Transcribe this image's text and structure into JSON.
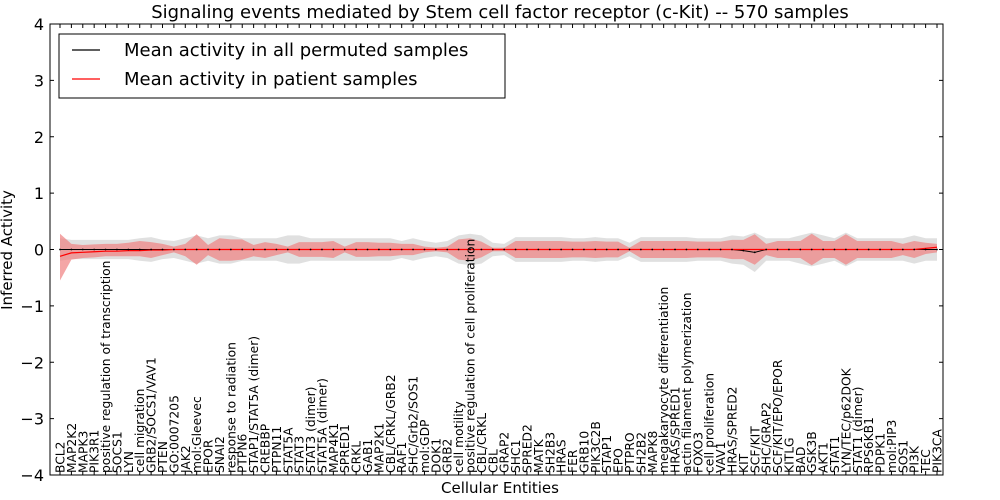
{
  "chart_data": {
    "type": "line",
    "title": "Signaling events mediated by Stem cell factor receptor (c-Kit) -- 570 samples",
    "xlabel": "Cellular Entities",
    "ylabel": "Inferred Activity",
    "ylim": [
      -4,
      4
    ],
    "yticks": [
      -4,
      -3,
      -2,
      -1,
      0,
      1,
      2,
      3,
      4
    ],
    "ytick_labels": [
      "−4",
      "−3",
      "−2",
      "−1",
      "0",
      "1",
      "2",
      "3",
      "4"
    ],
    "grid": false,
    "legend": {
      "placement": "top-left",
      "entries": [
        {
          "label": "Mean activity in all permuted samples",
          "color": "#000000"
        },
        {
          "label": "Mean activity in patient samples",
          "color": "#ff0000"
        }
      ]
    },
    "colors": {
      "permuted_line": "#000000",
      "patient_line": "#ff0000",
      "patient_band": "#f08080",
      "permuted_band": "#d3d3d3"
    },
    "categories": [
      "BCL2",
      "MAP2K2",
      "MAPK3",
      "PIK3R1",
      "positive regulation of transcription",
      "SOCS1",
      "LYN",
      "cell migration",
      "GRB2/SOCS1/VAV1",
      "PTEN",
      "GO:0007205",
      "JAK2",
      "mol:Gleevec",
      "EPOR",
      "SNAI2",
      "response to radiation",
      "PTPN6",
      "STAP1/STAT5A (dimer)",
      "CREBBP",
      "PTPN11",
      "STAT5A",
      "STAT3",
      "STAT3 (dimer)",
      "STAT5A (dimer)",
      "MAP4K1",
      "SPRED1",
      "CRKL",
      "GAB1",
      "MAP2K1",
      "CBL/CRKL/GRB2",
      "RAF1",
      "SHC/Grb2/SOS1",
      "mol:GDP",
      "DOK1",
      "GRB2",
      "cell motility",
      "positive regulation of cell proliferation",
      "CBL/CRKL",
      "CBL",
      "GRAP2",
      "SHC1",
      "SPRED2",
      "MATK",
      "SH2B3",
      "HRAS",
      "FER",
      "GRB10",
      "PIK3C2B",
      "STAP1",
      "EPO",
      "PTPRO",
      "SH2B2",
      "MAPK8",
      "megakaryocyte differentiation",
      "HRAS/SPRED1",
      "actin filament polymerization",
      "FOXO3",
      "cell proliferation",
      "VAV1",
      "HRAS/SPRED2",
      "KIT",
      "SCF/KIT",
      "SHC/GRAP2",
      "SCF/KIT/EPO/EPOR",
      "KITLG",
      "BAD",
      "GSK3B",
      "AKT1",
      "STAT1",
      "LYN/TEC/p62DOK",
      "STAT1 (dimer)",
      "RPS6KB1",
      "PDPK1",
      "mol:PIP3",
      "SOS1",
      "PI3K",
      "TEC",
      "PIK3CA"
    ],
    "series": [
      {
        "name": "Mean activity in all permuted samples",
        "values": [
          0.0,
          0.0,
          0.0,
          0.0,
          0.0,
          0.0,
          0.0,
          0.0,
          0.0,
          0.0,
          0.0,
          0.0,
          0.0,
          0.0,
          0.0,
          0.0,
          0.0,
          0.0,
          0.0,
          0.0,
          0.0,
          0.0,
          0.0,
          0.0,
          0.0,
          0.0,
          0.0,
          0.0,
          0.0,
          0.0,
          0.0,
          0.0,
          0.0,
          0.0,
          0.0,
          0.0,
          0.0,
          0.0,
          0.0,
          0.0,
          0.0,
          0.0,
          0.0,
          0.0,
          0.0,
          0.0,
          0.0,
          0.0,
          0.0,
          0.0,
          0.0,
          0.0,
          0.0,
          0.0,
          0.0,
          0.0,
          0.0,
          0.0,
          0.0,
          0.0,
          -0.02,
          -0.05,
          0.0,
          0.0,
          0.0,
          0.0,
          0.0,
          0.0,
          0.0,
          0.0,
          0.0,
          0.0,
          0.0,
          0.0,
          0.0,
          0.0,
          0.0,
          0.0
        ],
        "band": [
          0.2,
          0.17,
          0.17,
          0.17,
          0.17,
          0.17,
          0.17,
          0.2,
          0.22,
          0.17,
          0.15,
          0.2,
          0.25,
          0.2,
          0.25,
          0.25,
          0.2,
          0.2,
          0.2,
          0.2,
          0.25,
          0.25,
          0.2,
          0.2,
          0.2,
          0.2,
          0.2,
          0.2,
          0.2,
          0.2,
          0.15,
          0.2,
          0.15,
          0.12,
          0.15,
          0.25,
          0.28,
          0.25,
          0.12,
          0.1,
          0.22,
          0.22,
          0.22,
          0.22,
          0.22,
          0.2,
          0.2,
          0.22,
          0.2,
          0.2,
          0.12,
          0.22,
          0.22,
          0.22,
          0.22,
          0.22,
          0.2,
          0.2,
          0.2,
          0.25,
          0.25,
          0.35,
          0.2,
          0.2,
          0.2,
          0.25,
          0.3,
          0.25,
          0.2,
          0.3,
          0.2,
          0.2,
          0.2,
          0.2,
          0.2,
          0.25,
          0.2,
          0.2
        ]
      },
      {
        "name": "Mean activity in patient samples",
        "values": [
          -0.12,
          -0.06,
          -0.05,
          -0.04,
          -0.03,
          -0.03,
          -0.02,
          -0.02,
          -0.01,
          -0.01,
          0.0,
          0.0,
          0.0,
          0.0,
          0.0,
          0.0,
          0.0,
          0.0,
          0.0,
          0.0,
          0.0,
          0.0,
          0.0,
          0.0,
          0.0,
          0.0,
          0.0,
          0.0,
          0.0,
          0.0,
          0.0,
          0.0,
          0.0,
          0.0,
          0.0,
          0.0,
          0.0,
          0.0,
          0.0,
          0.0,
          0.0,
          0.0,
          0.0,
          0.0,
          0.0,
          0.0,
          0.0,
          0.0,
          0.0,
          0.0,
          0.0,
          0.0,
          0.0,
          0.0,
          0.0,
          0.0,
          0.0,
          0.0,
          0.0,
          0.0,
          0.0,
          0.0,
          0.0,
          0.0,
          0.0,
          0.0,
          0.0,
          0.0,
          0.0,
          0.0,
          0.0,
          0.0,
          0.0,
          0.0,
          0.0,
          0.0,
          0.02,
          0.04
        ],
        "band_upper": [
          0.28,
          0.1,
          0.08,
          0.09,
          0.1,
          0.1,
          0.12,
          0.15,
          0.13,
          0.1,
          0.05,
          0.1,
          0.27,
          0.08,
          0.2,
          0.18,
          0.18,
          0.08,
          0.13,
          0.1,
          0.05,
          0.13,
          0.13,
          0.13,
          0.15,
          0.05,
          0.13,
          0.13,
          0.12,
          0.12,
          0.1,
          0.1,
          0.05,
          0.03,
          0.05,
          0.18,
          0.2,
          0.14,
          0.03,
          0.03,
          0.15,
          0.15,
          0.15,
          0.15,
          0.15,
          0.14,
          0.14,
          0.15,
          0.14,
          0.14,
          0.03,
          0.15,
          0.15,
          0.15,
          0.15,
          0.15,
          0.14,
          0.14,
          0.14,
          0.17,
          0.17,
          0.27,
          0.1,
          0.15,
          0.15,
          0.15,
          0.28,
          0.15,
          0.15,
          0.27,
          0.15,
          0.15,
          0.15,
          0.15,
          0.1,
          0.15,
          0.12,
          0.1
        ],
        "band_lower": [
          -0.55,
          -0.18,
          -0.15,
          -0.14,
          -0.12,
          -0.12,
          -0.12,
          -0.12,
          -0.15,
          -0.1,
          -0.05,
          -0.12,
          -0.27,
          -0.1,
          -0.2,
          -0.2,
          -0.18,
          -0.12,
          -0.15,
          -0.1,
          -0.05,
          -0.13,
          -0.13,
          -0.13,
          -0.15,
          -0.05,
          -0.13,
          -0.13,
          -0.12,
          -0.12,
          -0.1,
          -0.1,
          -0.05,
          -0.03,
          -0.05,
          -0.18,
          -0.2,
          -0.14,
          -0.03,
          -0.03,
          -0.15,
          -0.15,
          -0.15,
          -0.15,
          -0.15,
          -0.14,
          -0.14,
          -0.15,
          -0.14,
          -0.14,
          -0.03,
          -0.15,
          -0.15,
          -0.15,
          -0.15,
          -0.15,
          -0.14,
          -0.14,
          -0.14,
          -0.17,
          -0.17,
          -0.27,
          -0.1,
          -0.15,
          -0.15,
          -0.15,
          -0.28,
          -0.15,
          -0.15,
          -0.27,
          -0.15,
          -0.15,
          -0.15,
          -0.15,
          -0.1,
          -0.15,
          -0.08,
          -0.05
        ]
      }
    ]
  }
}
